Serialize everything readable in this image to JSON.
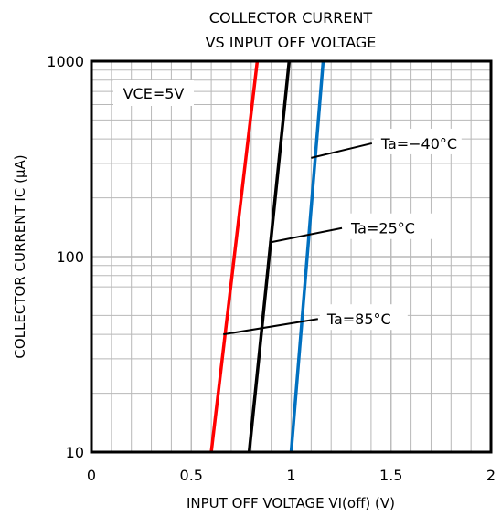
{
  "chart_data": {
    "type": "line",
    "title": [
      "COLLECTOR CURRENT",
      "VS INPUT OFF VOLTAGE"
    ],
    "xlabel": "INPUT OFF VOLTAGE VI(off) (V)",
    "ylabel": "COLLECTOR CURRENT IC (μA)",
    "xlim": [
      0,
      2
    ],
    "ylim": [
      10,
      1000
    ],
    "yscale": "log",
    "grid": true,
    "x_ticks": [
      0,
      0.5,
      1,
      1.5,
      2
    ],
    "x_tick_labels": [
      "0",
      "0.5",
      "1",
      "1.5",
      "2"
    ],
    "y_ticks": [
      10,
      100,
      1000
    ],
    "y_tick_labels": [
      "10",
      "100",
      "1000"
    ],
    "condition": "VCE=5V",
    "series": [
      {
        "name": "Ta=85°C",
        "color": "#ff0000",
        "x": [
          0.6,
          0.83
        ],
        "y": [
          10,
          1000
        ]
      },
      {
        "name": "Ta=25°C",
        "color": "#000000",
        "x": [
          0.79,
          0.99
        ],
        "y": [
          10,
          1000
        ]
      },
      {
        "name": "Ta=−40°C",
        "color": "#0070c0",
        "x": [
          1.0,
          1.16
        ],
        "y": [
          10,
          1000
        ]
      }
    ],
    "annotations": [
      {
        "text": "Ta=−40°C",
        "series": 2,
        "point": [
          1.1,
          320
        ],
        "label_at": [
          1.45,
          380
        ]
      },
      {
        "text": "Ta=25°C",
        "series": 1,
        "point": [
          0.89,
          118
        ],
        "label_at": [
          1.3,
          140
        ]
      },
      {
        "text": "Ta=85°C",
        "series": 0,
        "point": [
          0.66,
          40
        ],
        "label_at": [
          1.18,
          48
        ]
      }
    ]
  }
}
